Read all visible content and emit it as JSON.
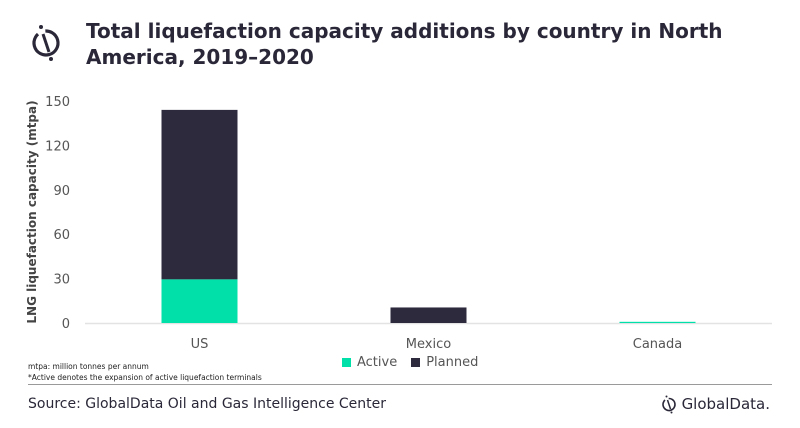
{
  "header": {
    "title": "Total liquefaction capacity additions by country in North America, 2019–2020",
    "logo_icon": "globaldata-logo-icon"
  },
  "chart_data": {
    "type": "bar",
    "stacked": true,
    "title": "Total liquefaction capacity additions by country in North America, 2019–2020",
    "xlabel": "",
    "ylabel": "LNG liquefaction capacity (mtpa)",
    "ylim": [
      0,
      150
    ],
    "yticks": [
      0,
      30,
      60,
      90,
      120,
      150
    ],
    "categories": [
      "US",
      "Mexico",
      "Canada"
    ],
    "series": [
      {
        "name": "Active",
        "color": "#00e0a8",
        "values": [
          29.5,
          0,
          0.8
        ]
      },
      {
        "name": "Planned",
        "color": "#2d2a3e",
        "values": [
          114.5,
          10.5,
          0
        ]
      }
    ],
    "grid": false,
    "legend": "bottom-center"
  },
  "footnotes": [
    "mtpa: million tonnes per annum",
    "*Active denotes the expansion of active liquefaction terminals"
  ],
  "source": "Source: GlobalData Oil and Gas Intelligence Center",
  "brand": "GlobalData."
}
